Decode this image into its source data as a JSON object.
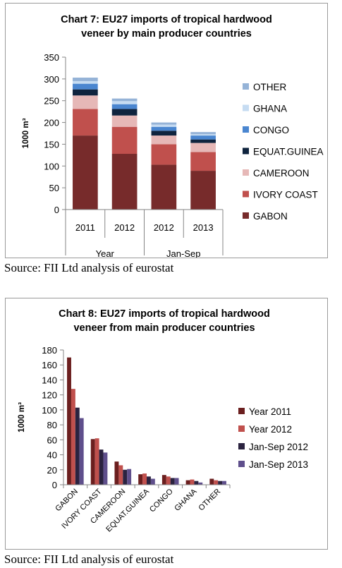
{
  "chart_data": [
    {
      "type": "bar",
      "stacked": true,
      "title_lines": [
        "Chart 7: EU27 imports of tropical hardwood",
        "veneer by main producer countries"
      ],
      "ylabel": "1000 m³",
      "ylim": [
        0,
        350
      ],
      "yticks": [
        0,
        50,
        100,
        150,
        200,
        250,
        300,
        350
      ],
      "categories": [
        "2011",
        "2012",
        "2012",
        "2013"
      ],
      "category_groups": [
        {
          "label": "Year",
          "span": [
            0,
            1
          ]
        },
        {
          "label": "Jan-Sep",
          "span": [
            2,
            3
          ]
        }
      ],
      "grid": false,
      "legend": "right",
      "series": [
        {
          "name": "GABON",
          "color": "#772b2b",
          "values": [
            170,
            128,
            103,
            89
          ]
        },
        {
          "name": "IVORY COAST",
          "color": "#c0504d",
          "values": [
            61,
            62,
            47,
            43
          ]
        },
        {
          "name": "CAMEROON",
          "color": "#e6b8b7",
          "values": [
            31,
            26,
            20,
            21
          ]
        },
        {
          "name": "EQUAT.GUINEA",
          "color": "#0f243e",
          "values": [
            14,
            15,
            11,
            8
          ]
        },
        {
          "name": "CONGO",
          "color": "#4a86d0",
          "values": [
            13,
            11,
            9,
            9
          ]
        },
        {
          "name": "GHANA",
          "color": "#c6dcf2",
          "values": [
            6,
            7,
            5,
            3
          ]
        },
        {
          "name": "OTHER",
          "color": "#95b3d7",
          "values": [
            8,
            6,
            5,
            5
          ]
        }
      ]
    },
    {
      "type": "bar",
      "stacked": false,
      "title_lines": [
        "Chart 8: EU27 imports of tropical hardwood",
        "veneer from main producer countries"
      ],
      "ylabel": "1000 m³",
      "ylim": [
        0,
        180
      ],
      "yticks": [
        0,
        20,
        40,
        60,
        80,
        100,
        120,
        140,
        160,
        180
      ],
      "categories": [
        "GABON",
        "IVORY COAST",
        "CAMEROON",
        "EQUAT.GUINEA",
        "CONGO",
        "GHANA",
        "OTHER"
      ],
      "grid": false,
      "legend": "right",
      "series": [
        {
          "name": "Year 2011",
          "color": "#6b1f1f",
          "values": [
            170,
            61,
            31,
            14,
            13,
            6,
            8
          ]
        },
        {
          "name": "Year 2012",
          "color": "#c0504d",
          "values": [
            128,
            62,
            26,
            15,
            11,
            7,
            6
          ]
        },
        {
          "name": "Jan-Sep 2012",
          "color": "#2b2340",
          "values": [
            103,
            47,
            20,
            11,
            9,
            5,
            5
          ]
        },
        {
          "name": "Jan-Sep 2013",
          "color": "#5f4f8c",
          "values": [
            89,
            43,
            21,
            8,
            9,
            3,
            5
          ]
        }
      ]
    }
  ],
  "sources": [
    "Source: FII Ltd analysis of eurostat",
    "Source: FII Ltd analysis of eurostat"
  ]
}
